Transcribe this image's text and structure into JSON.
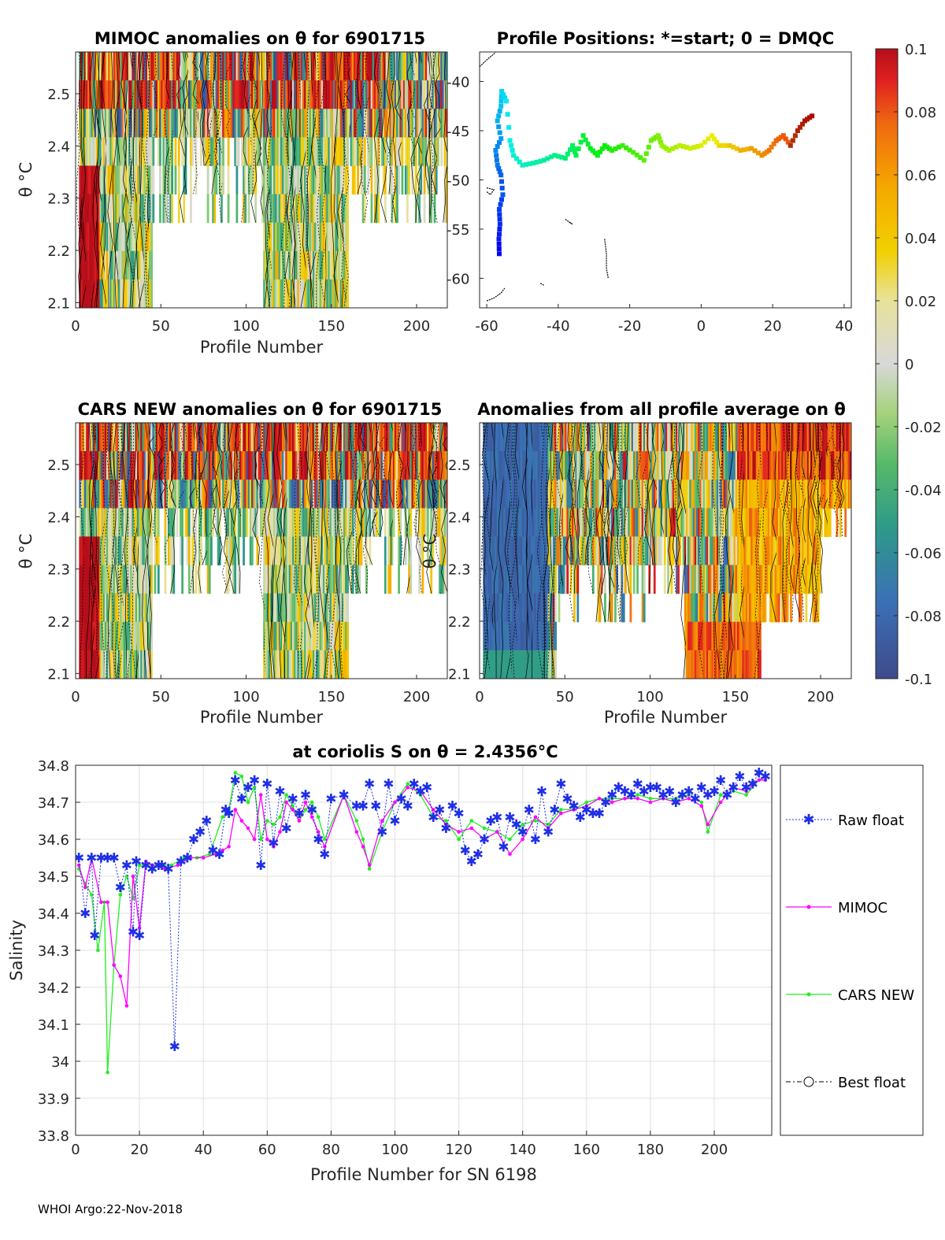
{
  "footer": "WHOI Argo:22-Nov-2018",
  "panels": {
    "mimoc": {
      "title": "MIMOC anomalies on θ  for 6901715",
      "xlabel": "Profile Number",
      "ylabel": "θ °C"
    },
    "positions": {
      "title": "Profile Positions: *=start; 0 = DMQC"
    },
    "cars": {
      "title": "CARS NEW anomalies on θ for 6901715",
      "xlabel": "Profile Number",
      "ylabel": "θ °C"
    },
    "allavg": {
      "title": "Anomalies from all profile average on θ",
      "xlabel": "Profile Number",
      "ylabel": "θ °C"
    }
  },
  "colorbar": {
    "ticks": [
      "0.1",
      "0.08",
      "0.06",
      "0.04",
      "0.02",
      "0",
      "-0.02",
      "-0.04",
      "-0.06",
      "-0.08",
      "-0.1"
    ]
  },
  "chart_data": [
    {
      "type": "heatmap",
      "title": "MIMOC anomalies on θ  for 6901715",
      "xlabel": "Profile Number",
      "ylabel": "θ °C",
      "xlim": [
        0,
        218
      ],
      "ylim": [
        2.09,
        2.58
      ],
      "xticks": [
        0,
        50,
        100,
        150,
        200
      ],
      "yticks": [
        2.1,
        2.2,
        2.3,
        2.4,
        2.5
      ]
    },
    {
      "type": "scatter",
      "title": "Profile Positions: *=start; 0 = DMQC",
      "xlim": [
        -62,
        42
      ],
      "ylim": [
        -63,
        -37
      ],
      "xticks": [
        -60,
        -40,
        -20,
        0,
        20,
        40
      ],
      "yticks": [
        -40,
        -45,
        -50,
        -55,
        -60
      ],
      "track": [
        [
          -56.5,
          -57.5
        ],
        [
          -56.6,
          -56
        ],
        [
          -56.3,
          -54.5
        ],
        [
          -56.5,
          -53
        ],
        [
          -55.5,
          -51.5
        ],
        [
          -56,
          -49.5
        ],
        [
          -57,
          -48.5
        ],
        [
          -57.5,
          -47
        ],
        [
          -56,
          -45.8
        ],
        [
          -57,
          -44
        ],
        [
          -56,
          -42.5
        ],
        [
          -55.8,
          -41
        ],
        [
          -54.5,
          -42
        ],
        [
          -53.5,
          -46
        ],
        [
          -52.5,
          -47.5
        ],
        [
          -50,
          -48.5
        ],
        [
          -47,
          -48.3
        ],
        [
          -44,
          -48
        ],
        [
          -41,
          -47.5
        ],
        [
          -38,
          -47.8
        ],
        [
          -36,
          -46.5
        ],
        [
          -35,
          -47.5
        ],
        [
          -33,
          -45.5
        ],
        [
          -31,
          -46.8
        ],
        [
          -29,
          -47.5
        ],
        [
          -27,
          -46.5
        ],
        [
          -25,
          -47
        ],
        [
          -22,
          -46.5
        ],
        [
          -19,
          -47.2
        ],
        [
          -16,
          -48
        ],
        [
          -14,
          -46
        ],
        [
          -12,
          -45.5
        ],
        [
          -11,
          -46.5
        ],
        [
          -9,
          -47
        ],
        [
          -6,
          -46.5
        ],
        [
          -3,
          -46.8
        ],
        [
          0,
          -46.5
        ],
        [
          3,
          -45.5
        ],
        [
          5,
          -46.5
        ],
        [
          8,
          -46.5
        ],
        [
          11,
          -47
        ],
        [
          14,
          -46.8
        ],
        [
          17,
          -47.5
        ],
        [
          19,
          -47
        ],
        [
          21,
          -46
        ],
        [
          23,
          -45.5
        ],
        [
          25,
          -46.5
        ],
        [
          27,
          -45
        ],
        [
          29,
          -44
        ],
        [
          31,
          -43.5
        ]
      ]
    },
    {
      "type": "heatmap",
      "title": "CARS NEW anomalies on θ for 6901715",
      "xlabel": "Profile Number",
      "ylabel": "θ °C",
      "xlim": [
        0,
        218
      ],
      "ylim": [
        2.09,
        2.58
      ],
      "xticks": [
        0,
        50,
        100,
        150,
        200
      ],
      "yticks": [
        2.1,
        2.2,
        2.3,
        2.4,
        2.5
      ]
    },
    {
      "type": "heatmap",
      "title": "Anomalies from all profile average on θ",
      "xlabel": "Profile Number",
      "ylabel": "θ °C",
      "xlim": [
        0,
        218
      ],
      "ylim": [
        2.09,
        2.58
      ],
      "xticks": [
        0,
        50,
        100,
        150,
        200
      ],
      "yticks": [
        2.1,
        2.2,
        2.3,
        2.4,
        2.5
      ]
    },
    {
      "type": "line",
      "title": "at coriolis S on θ = 2.4356°C",
      "xlabel": "Profile Number for SN 6198",
      "ylabel": "Salinity",
      "xlim": [
        0,
        218
      ],
      "ylim": [
        33.8,
        34.8
      ],
      "xticks": [
        0,
        20,
        40,
        60,
        80,
        100,
        120,
        140,
        160,
        180,
        200
      ],
      "yticks": [
        33.8,
        33.9,
        34,
        34.1,
        34.2,
        34.3,
        34.4,
        34.5,
        34.6,
        34.7,
        34.8
      ],
      "legend": [
        "Raw float",
        "MIMOC",
        "CARS NEW",
        "Best float"
      ],
      "series": [
        {
          "name": "Raw float",
          "x": [
            1,
            3,
            5,
            6,
            8,
            10,
            12,
            14,
            16,
            18,
            19,
            20,
            22,
            24,
            26,
            27,
            29,
            31,
            33,
            35,
            37,
            39,
            41,
            43,
            45,
            47,
            48,
            50,
            52,
            54,
            56,
            58,
            60,
            62,
            64,
            66,
            68,
            70,
            72,
            74,
            76,
            78,
            80,
            84,
            88,
            90,
            92,
            94,
            96,
            98,
            100,
            102,
            104,
            106,
            108,
            110,
            112,
            114,
            116,
            118,
            120,
            122,
            124,
            126,
            128,
            130,
            132,
            134,
            136,
            138,
            140,
            142,
            144,
            146,
            148,
            150,
            152,
            154,
            156,
            158,
            160,
            162,
            164,
            166,
            168,
            170,
            172,
            174,
            176,
            178,
            180,
            182,
            184,
            186,
            188,
            190,
            192,
            194,
            196,
            198,
            200,
            202,
            204,
            206,
            208,
            210,
            212,
            214,
            216
          ],
          "y": [
            34.55,
            34.4,
            34.55,
            34.34,
            34.55,
            34.55,
            34.55,
            34.47,
            34.53,
            34.35,
            34.54,
            34.34,
            34.53,
            34.52,
            34.53,
            34.53,
            34.52,
            34.04,
            34.54,
            34.55,
            34.6,
            34.62,
            34.65,
            34.57,
            34.56,
            34.68,
            34.67,
            34.76,
            34.71,
            34.74,
            34.76,
            34.53,
            34.75,
            34.59,
            34.73,
            34.63,
            34.71,
            34.67,
            34.72,
            34.68,
            34.6,
            34.56,
            34.71,
            34.72,
            34.69,
            34.69,
            34.75,
            34.69,
            34.62,
            34.75,
            34.65,
            34.71,
            34.69,
            34.75,
            34.73,
            34.74,
            34.66,
            34.68,
            34.63,
            34.69,
            34.67,
            34.57,
            34.54,
            34.56,
            34.6,
            34.65,
            34.66,
            34.58,
            34.66,
            34.64,
            34.62,
            34.68,
            34.6,
            34.73,
            34.62,
            34.68,
            34.75,
            34.71,
            34.69,
            34.66,
            34.68,
            34.67,
            34.67,
            34.7,
            34.72,
            34.74,
            34.73,
            34.72,
            34.75,
            34.73,
            34.74,
            34.74,
            34.72,
            34.73,
            34.7,
            34.72,
            34.73,
            34.71,
            34.74,
            34.72,
            34.73,
            34.76,
            34.72,
            34.74,
            34.77,
            34.74,
            34.75,
            34.78,
            34.77
          ]
        },
        {
          "name": "MIMOC",
          "x": [
            1,
            3,
            5,
            8,
            10,
            12,
            14,
            16,
            18,
            20,
            22,
            24,
            28,
            32,
            36,
            40,
            44,
            46,
            48,
            50,
            52,
            54,
            56,
            58,
            60,
            62,
            64,
            66,
            68,
            70,
            72,
            74,
            76,
            78,
            84,
            88,
            90,
            92,
            96,
            100,
            104,
            108,
            112,
            116,
            120,
            124,
            128,
            132,
            136,
            140,
            144,
            148,
            152,
            156,
            160,
            164,
            168,
            172,
            176,
            180,
            184,
            188,
            192,
            196,
            198,
            202,
            206,
            210,
            214,
            216
          ],
          "y": [
            34.53,
            34.47,
            34.55,
            34.43,
            34.43,
            34.26,
            34.23,
            34.15,
            34.5,
            34.36,
            34.54,
            34.53,
            34.52,
            34.53,
            34.55,
            34.55,
            34.56,
            34.57,
            34.58,
            34.68,
            34.65,
            34.63,
            34.6,
            34.72,
            34.6,
            34.58,
            34.62,
            34.7,
            34.68,
            34.65,
            34.7,
            34.66,
            34.62,
            34.58,
            34.72,
            34.62,
            34.58,
            34.53,
            34.65,
            34.7,
            34.74,
            34.73,
            34.68,
            34.64,
            34.62,
            34.63,
            34.6,
            34.62,
            34.56,
            34.6,
            34.66,
            34.63,
            34.67,
            34.68,
            34.69,
            34.71,
            34.7,
            34.71,
            34.71,
            34.7,
            34.71,
            34.7,
            34.71,
            34.69,
            34.64,
            34.7,
            34.74,
            34.73,
            34.76,
            34.76
          ]
        },
        {
          "name": "CARS NEW",
          "x": [
            1,
            3,
            5,
            7,
            9,
            10,
            12,
            14,
            16,
            18,
            20,
            22,
            26,
            30,
            34,
            38,
            42,
            46,
            48,
            50,
            52,
            54,
            56,
            58,
            60,
            62,
            64,
            66,
            68,
            70,
            72,
            74,
            76,
            78,
            84,
            88,
            90,
            92,
            96,
            100,
            104,
            108,
            112,
            116,
            120,
            124,
            128,
            132,
            136,
            140,
            144,
            148,
            152,
            156,
            160,
            164,
            168,
            172,
            176,
            180,
            184,
            188,
            192,
            196,
            198,
            202,
            206,
            210,
            214,
            216
          ],
          "y": [
            34.52,
            34.48,
            34.45,
            34.3,
            34.43,
            33.97,
            34.26,
            34.45,
            34.5,
            34.44,
            34.53,
            34.53,
            34.53,
            34.53,
            34.55,
            34.55,
            34.56,
            34.66,
            34.68,
            34.78,
            34.77,
            34.7,
            34.74,
            34.6,
            34.65,
            34.64,
            34.66,
            34.72,
            34.69,
            34.65,
            34.68,
            34.7,
            34.66,
            34.6,
            34.72,
            34.65,
            34.6,
            34.52,
            34.62,
            34.7,
            34.75,
            34.72,
            34.66,
            34.65,
            34.6,
            34.65,
            34.63,
            34.62,
            34.6,
            34.64,
            34.65,
            34.64,
            34.68,
            34.68,
            34.7,
            34.71,
            34.71,
            34.71,
            34.72,
            34.71,
            34.71,
            34.71,
            34.72,
            34.7,
            34.62,
            34.72,
            34.73,
            34.72,
            34.76,
            34.77
          ]
        },
        {
          "name": "Best float",
          "x": [],
          "y": []
        }
      ]
    }
  ]
}
